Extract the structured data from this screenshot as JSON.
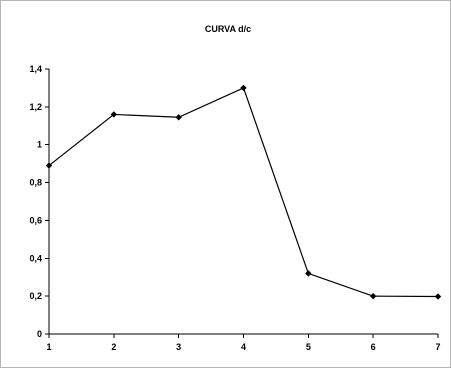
{
  "chart_data": {
    "type": "line",
    "title": "CURVA d/c",
    "xlabel": "",
    "ylabel": "",
    "x": [
      1,
      2,
      3,
      4,
      5,
      6,
      7
    ],
    "xlim": [
      1,
      7
    ],
    "ylim": [
      0,
      1.4
    ],
    "x_ticks": [
      "1",
      "2",
      "3",
      "4",
      "5",
      "6",
      "7"
    ],
    "y_ticks": [
      {
        "value": 0,
        "label": "0"
      },
      {
        "value": 0.2,
        "label": "0,2"
      },
      {
        "value": 0.4,
        "label": "0,4"
      },
      {
        "value": 0.6,
        "label": "0,6"
      },
      {
        "value": 0.8,
        "label": "0,8"
      },
      {
        "value": 1.0,
        "label": "1"
      },
      {
        "value": 1.2,
        "label": "1,2"
      },
      {
        "value": 1.4,
        "label": "1,4"
      }
    ],
    "grid": false,
    "legend": "none",
    "series": [
      {
        "values": [
          0.89,
          1.16,
          1.145,
          1.3,
          0.32,
          0.2,
          0.198
        ],
        "color": "#000000",
        "marker": "diamond"
      }
    ]
  }
}
